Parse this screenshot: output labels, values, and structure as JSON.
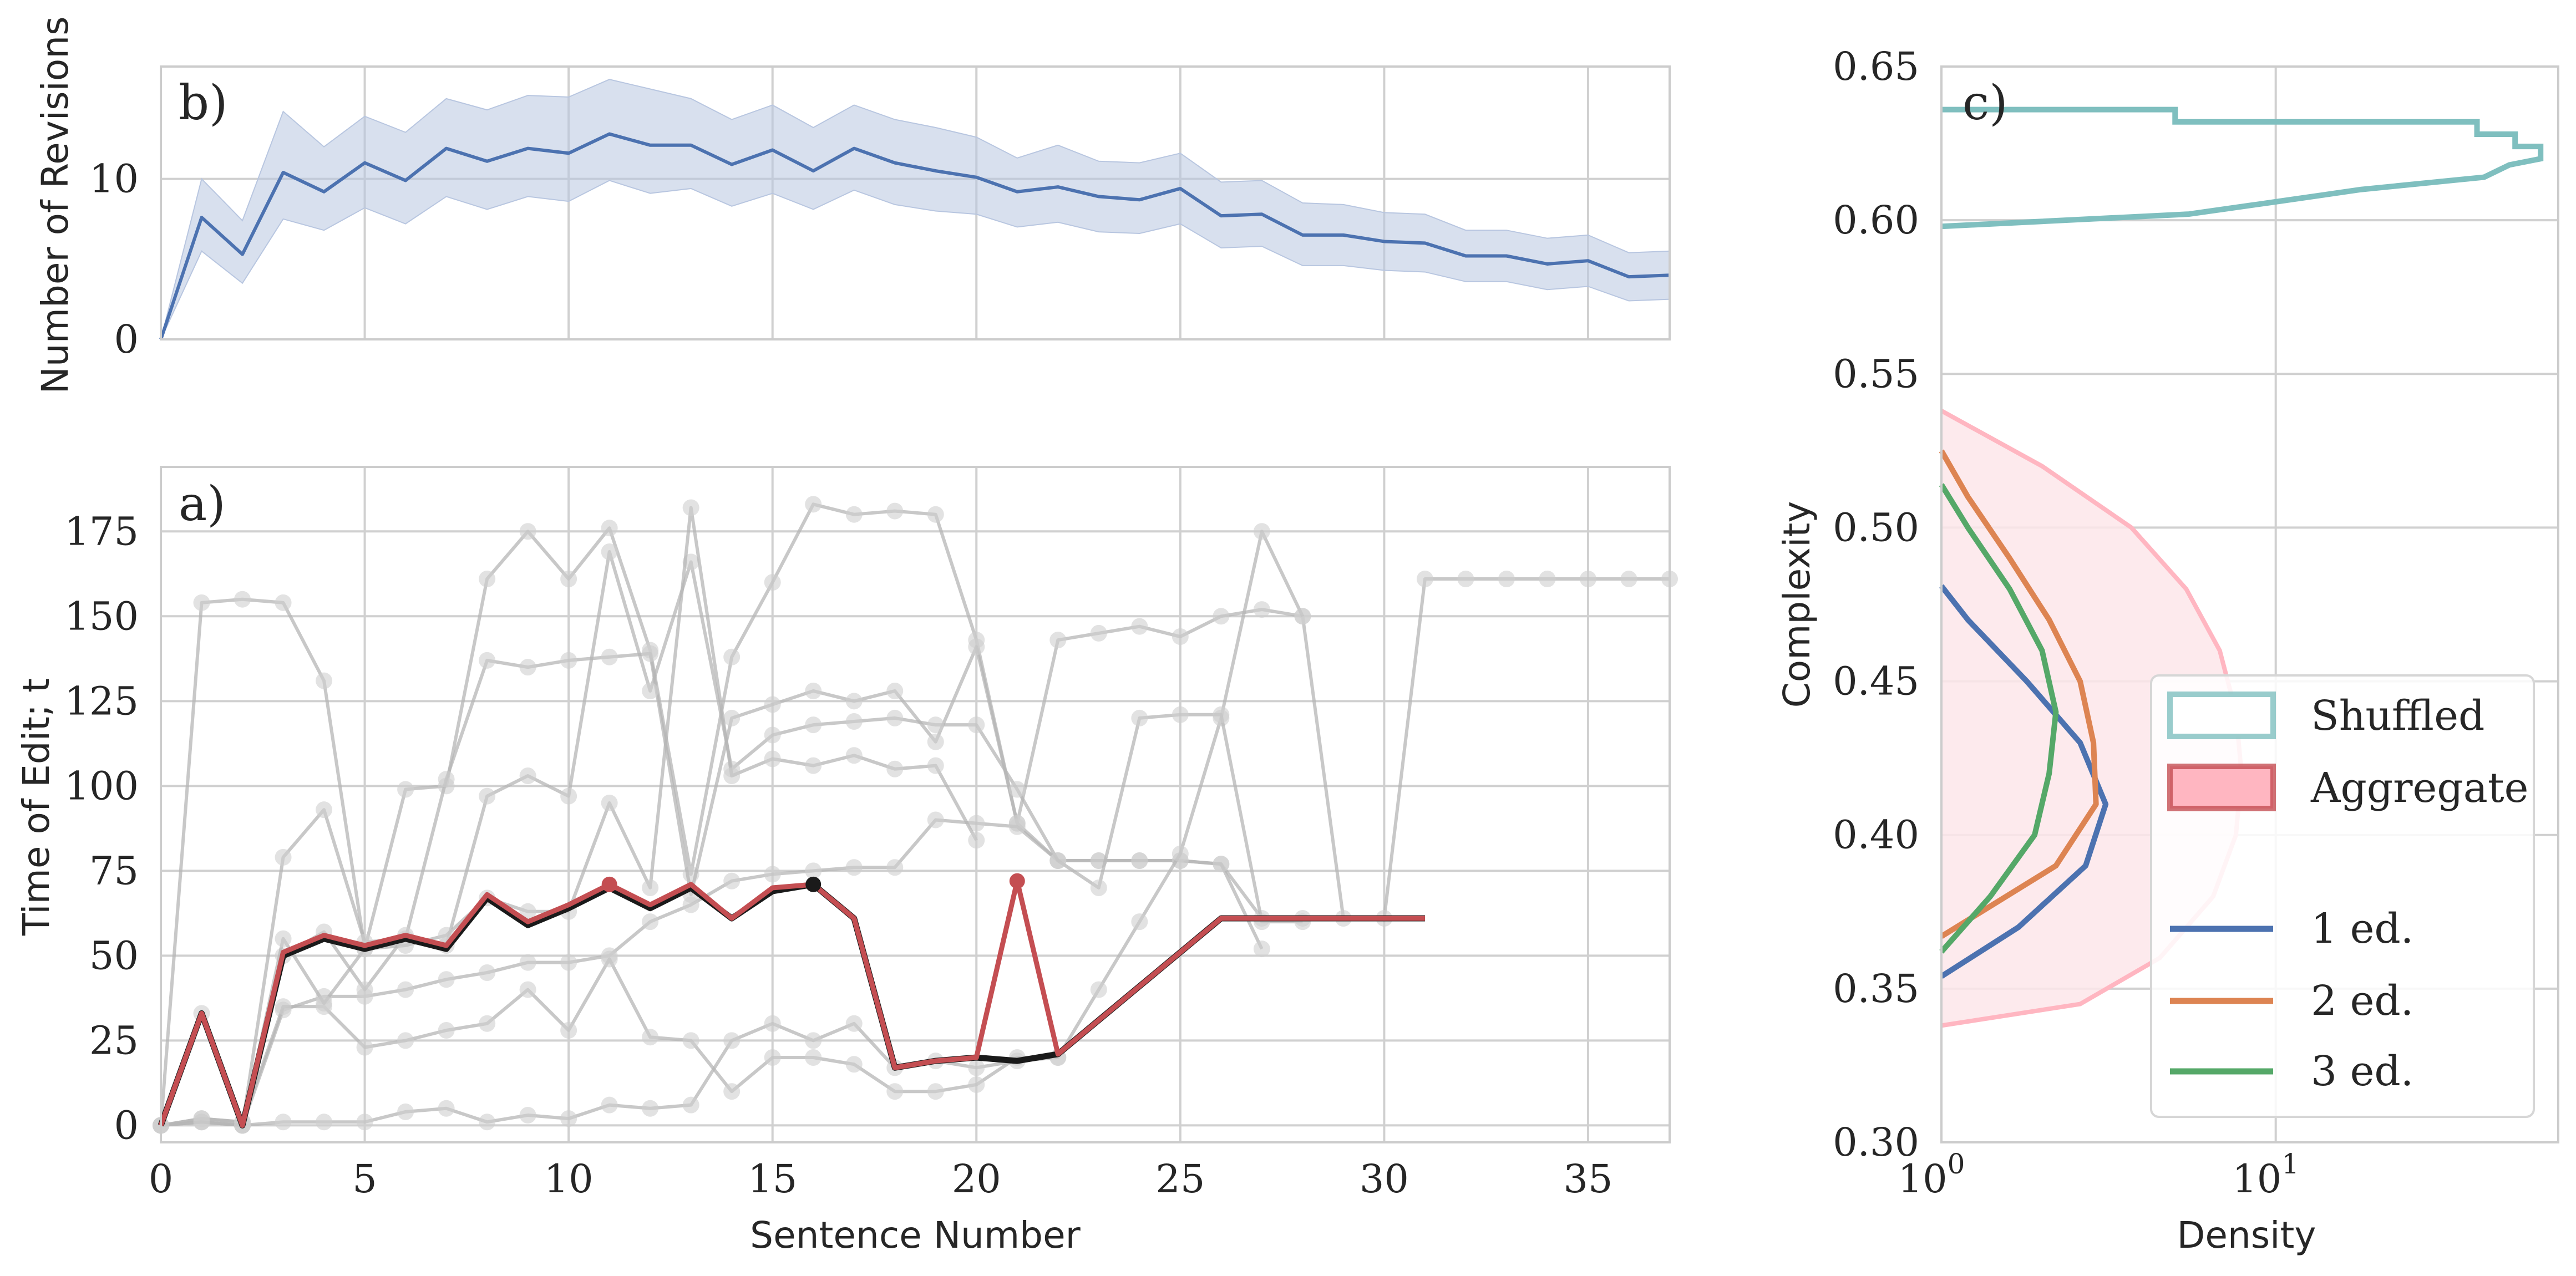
{
  "colors": {
    "blue": "#4c72b0",
    "blue_band": "#b8c6e0",
    "red": "#c44e52",
    "black": "#1a1a1a",
    "gray": "#b5b5b5",
    "teal": "#7fbfbf",
    "pink": "#ffb6c1",
    "pink_fill": "#fde6ea",
    "orange": "#dd8452",
    "green": "#55a868",
    "grid": "#d0d0d0"
  },
  "chart_data": [
    {
      "id": "b",
      "panel_label": "b)",
      "type": "line",
      "ylabel": "Number of Revisions",
      "xlabel": "",
      "xlim": [
        0,
        37
      ],
      "ylim": [
        0,
        17
      ],
      "yticks": [
        0,
        10
      ],
      "xticks": [
        0,
        5,
        10,
        15,
        20,
        25,
        30,
        35
      ],
      "series": [
        {
          "name": "mean revisions",
          "x": [
            0,
            1,
            2,
            3,
            4,
            5,
            6,
            7,
            8,
            9,
            10,
            11,
            12,
            13,
            14,
            15,
            16,
            17,
            18,
            19,
            20,
            21,
            22,
            23,
            24,
            25,
            26,
            27,
            28,
            29,
            30,
            31,
            32,
            33,
            34,
            35,
            36,
            37
          ],
          "values": [
            0,
            7.6,
            5.3,
            10.4,
            9.2,
            11,
            9.9,
            11.9,
            11.1,
            11.9,
            11.6,
            12.8,
            12.1,
            12.1,
            10.9,
            11.8,
            10.5,
            11.9,
            11,
            10.5,
            10.1,
            9.2,
            9.5,
            8.9,
            8.7,
            9.4,
            7.7,
            7.8,
            6.5,
            6.5,
            6.1,
            6,
            5.2,
            5.2,
            4.7,
            4.9,
            3.9,
            4
          ],
          "ci_low": [
            0,
            5.5,
            3.5,
            7.5,
            6.8,
            8.2,
            7.2,
            8.9,
            8.1,
            8.9,
            8.6,
            9.9,
            9.1,
            9.4,
            8.3,
            9.1,
            8.1,
            9.3,
            8.4,
            8,
            7.8,
            7,
            7.3,
            6.7,
            6.6,
            7.2,
            5.7,
            5.8,
            4.6,
            4.6,
            4.3,
            4.2,
            3.6,
            3.6,
            3.1,
            3.3,
            2.4,
            2.5
          ],
          "ci_high": [
            0,
            10,
            7.4,
            14.2,
            12,
            13.9,
            12.9,
            15,
            14.3,
            15.2,
            15.1,
            16.2,
            15.6,
            15,
            13.7,
            14.6,
            13.2,
            14.6,
            13.7,
            13.2,
            12.6,
            11.3,
            12.1,
            11.1,
            11,
            11.6,
            9.8,
            9.9,
            8.5,
            8.4,
            7.9,
            7.8,
            6.8,
            6.8,
            6.3,
            6.5,
            5.4,
            5.5
          ]
        }
      ]
    },
    {
      "id": "a",
      "panel_label": "a)",
      "type": "line",
      "ylabel": "Time of Edit; t",
      "xlabel": "Sentence Number",
      "xlim": [
        0,
        37
      ],
      "ylim": [
        -5,
        194
      ],
      "yticks": [
        0,
        25,
        50,
        75,
        100,
        125,
        150,
        175
      ],
      "xticks": [
        0,
        5,
        10,
        15,
        20,
        25,
        30,
        35
      ],
      "series": [
        {
          "name": "document trajectory 1",
          "role": "background",
          "x": [
            0,
            1,
            2,
            3,
            4,
            5,
            6,
            7,
            8,
            9,
            10,
            11,
            12,
            13,
            14,
            15,
            16,
            17,
            18,
            19,
            20,
            21,
            22,
            23,
            24,
            25,
            26,
            27,
            28,
            29,
            30,
            31,
            32,
            33,
            34,
            35,
            36,
            37
          ],
          "values": [
            0,
            154,
            155,
            154,
            131,
            52,
            99,
            100,
            161,
            175,
            161,
            176,
            140,
            74,
            138,
            160,
            183,
            180,
            181,
            180,
            143,
            89,
            143,
            145,
            147,
            144,
            150,
            152,
            150,
            61,
            61,
            161,
            161,
            161,
            161,
            161,
            161,
            161
          ]
        },
        {
          "name": "document trajectory 2",
          "role": "background",
          "x": [
            0,
            1,
            2,
            3,
            4,
            5,
            6,
            7,
            8,
            9,
            10,
            11,
            12,
            13,
            14,
            15,
            16,
            17,
            18,
            19,
            20,
            21,
            22,
            23,
            24,
            25,
            26,
            27,
            28
          ],
          "values": [
            0,
            33,
            0,
            79,
            93,
            54,
            55,
            102,
            137,
            135,
            137,
            138,
            139,
            68,
            120,
            124,
            128,
            125,
            128,
            113,
            141,
            89,
            78,
            78,
            78,
            78,
            77,
            61,
            61
          ]
        },
        {
          "name": "document trajectory 3",
          "role": "background",
          "x": [
            0,
            1,
            2,
            3,
            4,
            5,
            6,
            7,
            8,
            9,
            10,
            11,
            12,
            13,
            14,
            15,
            16,
            17,
            18,
            19,
            20,
            21,
            22
          ],
          "values": [
            0,
            1,
            0,
            1,
            1,
            1,
            4,
            5,
            1,
            3,
            2,
            6,
            5,
            6,
            25,
            30,
            25,
            30,
            17,
            19,
            17,
            19,
            20
          ]
        },
        {
          "name": "document trajectory 4",
          "role": "background",
          "x": [
            0,
            1,
            2,
            3,
            4,
            5,
            6,
            7,
            8,
            9,
            10,
            11,
            12,
            13,
            14,
            15,
            16,
            17,
            18,
            19,
            20,
            21,
            22,
            23,
            24,
            25,
            26,
            27
          ],
          "values": [
            0,
            1,
            0,
            34,
            38,
            38,
            40,
            43,
            45,
            48,
            48,
            50,
            60,
            65,
            72,
            74,
            75,
            76,
            76,
            90,
            89,
            88,
            78,
            78,
            78,
            78,
            77,
            52
          ]
        },
        {
          "name": "document trajectory 5",
          "role": "background",
          "x": [
            0,
            1,
            2,
            3,
            4,
            5,
            6,
            7,
            8,
            9,
            10,
            11,
            12,
            13,
            14,
            15,
            16,
            17,
            18,
            19,
            20,
            21,
            22,
            23,
            24,
            25,
            26,
            27,
            28
          ],
          "values": [
            0,
            2,
            1,
            35,
            35,
            23,
            25,
            28,
            30,
            40,
            28,
            49,
            26,
            25,
            10,
            20,
            20,
            18,
            10,
            10,
            12,
            20,
            20,
            40,
            60,
            80,
            120,
            175,
            150
          ]
        },
        {
          "name": "document trajectory 6",
          "role": "background",
          "x": [
            0,
            1,
            2,
            3,
            4,
            5,
            6,
            7,
            8,
            9,
            10,
            11,
            12,
            13,
            14,
            15,
            16,
            17,
            18,
            19,
            20,
            21,
            22,
            23,
            24,
            25,
            26,
            27,
            28
          ],
          "values": [
            0,
            2,
            1,
            50,
            57,
            40,
            56,
            53,
            97,
            103,
            97,
            169,
            128,
            166,
            105,
            115,
            118,
            119,
            120,
            118,
            118,
            99,
            78,
            70,
            120,
            121,
            121,
            60,
            60
          ]
        },
        {
          "name": "document trajectory 7",
          "role": "background",
          "x": [
            0,
            1,
            2,
            3,
            4,
            5,
            6,
            7,
            8,
            9,
            10,
            11,
            12,
            13,
            14,
            15,
            16,
            17,
            18,
            19,
            20
          ],
          "values": [
            0,
            1,
            0,
            55,
            36,
            52,
            53,
            56,
            67,
            63,
            63,
            95,
            70,
            182,
            103,
            108,
            106,
            109,
            105,
            106,
            84
          ]
        },
        {
          "name": "highlighted trajectory",
          "role": "black",
          "x": [
            0,
            1,
            2,
            3,
            4,
            5,
            6,
            7,
            8,
            9,
            10,
            11,
            12,
            13,
            14,
            15,
            16,
            17,
            18,
            19,
            20,
            21,
            22,
            23,
            24,
            25,
            26,
            27,
            28,
            29,
            30,
            31
          ],
          "values": [
            0,
            33,
            0,
            50,
            55,
            52,
            55,
            52,
            67,
            59,
            64,
            70,
            64,
            70,
            61,
            69,
            71,
            61,
            17,
            19,
            20,
            19,
            21,
            31,
            41,
            51,
            61,
            61,
            61,
            61,
            61,
            61
          ]
        },
        {
          "name": "aggregate trajectory",
          "role": "red",
          "x": [
            0,
            1,
            2,
            3,
            4,
            5,
            6,
            7,
            8,
            9,
            10,
            11,
            12,
            13,
            14,
            15,
            16,
            17,
            18,
            19,
            20,
            21,
            22,
            23,
            24,
            25,
            26,
            27,
            28,
            29,
            30,
            31
          ],
          "values": [
            0,
            33,
            0,
            51,
            56,
            53,
            56,
            53,
            68,
            60,
            65,
            71,
            65,
            71,
            61,
            70,
            71,
            61,
            17,
            19,
            20,
            72,
            21,
            31,
            41,
            51,
            61,
            61,
            61,
            61,
            61,
            61
          ]
        }
      ],
      "markers": [
        {
          "x": 11,
          "y": 71,
          "color": "red"
        },
        {
          "x": 16,
          "y": 71,
          "color": "black"
        },
        {
          "x": 21,
          "y": 72,
          "color": "red"
        }
      ]
    },
    {
      "id": "c",
      "panel_label": "c)",
      "type": "area",
      "ylabel": "Complexity",
      "xlabel": "Density",
      "xscale": "log",
      "xlim": [
        1,
        70
      ],
      "ylim": [
        0.3,
        0.65
      ],
      "yticks": [
        0.3,
        0.35,
        0.4,
        0.45,
        0.5,
        0.55,
        0.6,
        0.65
      ],
      "xticks": [
        {
          "value": 1,
          "label": "10",
          "exp": "0"
        },
        {
          "value": 10,
          "label": "10",
          "exp": "1"
        }
      ],
      "series": [
        {
          "name": "Shuffled",
          "kind": "step-histogram",
          "color": "teal",
          "y_edges": [
            0.598,
            0.602,
            0.606,
            0.61,
            0.614,
            0.618,
            0.62,
            0.624,
            0.628,
            0.632,
            0.636
          ],
          "density": [
            1,
            5.5,
            10,
            18,
            42,
            50,
            62,
            52,
            40,
            5
          ],
          "density_right": [
            5.5,
            10,
            18,
            42,
            50,
            62,
            62,
            52,
            40,
            5
          ]
        },
        {
          "name": "Aggregate",
          "kind": "filled-kde",
          "color": "pink",
          "y": [
            0.338,
            0.345,
            0.36,
            0.38,
            0.4,
            0.42,
            0.44,
            0.46,
            0.48,
            0.5,
            0.52,
            0.538
          ],
          "density": [
            1,
            2.6,
            4.5,
            6.5,
            7.6,
            7.9,
            7.6,
            6.8,
            5.4,
            3.7,
            2.0,
            1
          ]
        },
        {
          "name": "1 ed.",
          "kind": "kde",
          "color": "blue",
          "y": [
            0.354,
            0.37,
            0.39,
            0.41,
            0.43,
            0.45,
            0.47,
            0.481
          ],
          "density": [
            1,
            1.7,
            2.7,
            3.1,
            2.6,
            1.8,
            1.2,
            1
          ]
        },
        {
          "name": "2 ed.",
          "kind": "kde",
          "color": "orange",
          "y": [
            0.367,
            0.39,
            0.41,
            0.43,
            0.45,
            0.47,
            0.49,
            0.51,
            0.525
          ],
          "density": [
            1,
            2.2,
            2.9,
            2.85,
            2.6,
            2.1,
            1.6,
            1.2,
            1
          ]
        },
        {
          "name": "3 ed.",
          "kind": "kde",
          "color": "green",
          "y": [
            0.362,
            0.38,
            0.4,
            0.42,
            0.44,
            0.46,
            0.48,
            0.5,
            0.514
          ],
          "density": [
            1,
            1.4,
            1.9,
            2.1,
            2.2,
            2.0,
            1.6,
            1.2,
            1
          ]
        }
      ],
      "legend": {
        "placement": "lower-right",
        "items": [
          {
            "label": "Shuffled",
            "style": "patch",
            "edge": "teal",
            "fill": "#ffffff"
          },
          {
            "label": "Aggregate",
            "style": "patch",
            "edge": "red",
            "fill": "pink"
          },
          {
            "label": "1 ed.",
            "style": "line",
            "color": "blue"
          },
          {
            "label": "2 ed.",
            "style": "line",
            "color": "orange"
          },
          {
            "label": "3 ed.",
            "style": "line",
            "color": "green"
          }
        ]
      }
    }
  ]
}
